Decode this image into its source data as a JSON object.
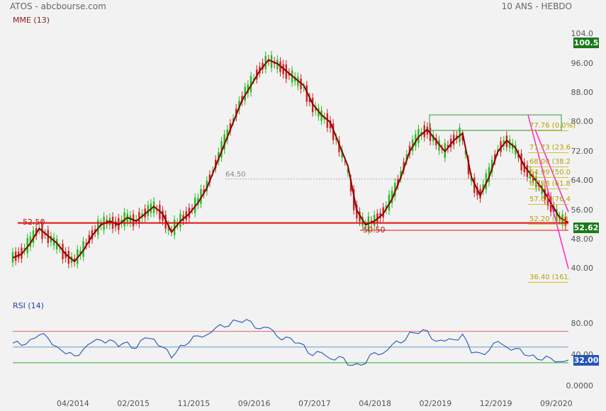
{
  "header": {
    "source_title": "ATOS - abcbourse.com",
    "period": "10 ANS - HEBDO",
    "indicator": "MME (13)",
    "rsi_indicator": "RSI (14)"
  },
  "price_badge": "100.5",
  "current_badge": "52.62",
  "rsi_badge": "32.00",
  "colors": {
    "up_candle": "#22bb22",
    "down_candle": "#cc2222",
    "ema": "#8b0000",
    "support": "#e01010",
    "fibo": "#c8b400",
    "trend": "#ff22cc",
    "rsi": "#2255bb",
    "rsi_upper": "#e06666",
    "rsi_mid": "#6699cc",
    "rsi_lower": "#33aa33",
    "box": "#339933"
  },
  "annotations": {
    "support_left": "52.50",
    "support_right": "50.50",
    "mid_level": "64.50"
  },
  "fibonacci": [
    {
      "label": "77.76  (0.0%)",
      "value": 77.76
    },
    {
      "label": "71.73  (23.6",
      "value": 71.73
    },
    {
      "label": "68.00  (38.2",
      "value": 68.0
    },
    {
      "label": "64.99  (50.0",
      "value": 64.99
    },
    {
      "label": "61.98  (61.8",
      "value": 61.98
    },
    {
      "label": "57.67  (76.4",
      "value": 57.67
    },
    {
      "label": "52.20  (100",
      "value": 52.2
    },
    {
      "label": "36.40  (161.",
      "value": 36.4
    }
  ],
  "chart_data": [
    {
      "type": "line",
      "title": "ATOS - abcbourse.com",
      "subtitle": "10 ANS - HEBDO",
      "series": [
        {
          "name": "MME (13)",
          "values": [
            43,
            44,
            47,
            51,
            49,
            47,
            44,
            42,
            45,
            49,
            52,
            53,
            52,
            54,
            53,
            55,
            57,
            55,
            50,
            53,
            55,
            58,
            62,
            68,
            74,
            80,
            86,
            90,
            94,
            97,
            96,
            94,
            92,
            90,
            85,
            82,
            80,
            74,
            68,
            56,
            52,
            53,
            55,
            59,
            65,
            72,
            76,
            78,
            75,
            72,
            75,
            77,
            65,
            60,
            65,
            72,
            75,
            73,
            68,
            65,
            62,
            58,
            54,
            52.62
          ]
        }
      ],
      "x_tick_labels": [
        "04/2014",
        "02/2015",
        "11/2015",
        "09/2016",
        "07/2017",
        "04/2018",
        "02/2019",
        "12/2019",
        "09/2020"
      ],
      "y_tick_labels": [
        "104.0",
        "96.00",
        "88.00",
        "80.00",
        "72.00",
        "64.00",
        "56.00",
        "48.00",
        "40.00"
      ],
      "ylim": [
        36,
        106
      ],
      "levels": [
        52.5,
        50.5,
        64.5
      ]
    },
    {
      "type": "line",
      "title": "RSI (14)",
      "series": [
        {
          "name": "RSI (14)",
          "values": [
            55,
            52,
            60,
            65,
            62,
            50,
            42,
            38,
            48,
            55,
            60,
            58,
            52,
            55,
            50,
            60,
            62,
            48,
            38,
            50,
            58,
            62,
            68,
            72,
            78,
            82,
            84,
            80,
            76,
            72,
            66,
            60,
            58,
            50,
            42,
            40,
            38,
            35,
            30,
            26,
            32,
            40,
            45,
            50,
            58,
            66,
            70,
            68,
            60,
            55,
            62,
            64,
            45,
            40,
            48,
            55,
            52,
            46,
            42,
            38,
            35,
            34,
            33,
            32
          ]
        }
      ],
      "y_tick_labels": [
        "80.00",
        "40.00",
        "0.0000"
      ],
      "ylim": [
        0,
        95
      ],
      "levels": [
        70,
        50,
        30
      ]
    }
  ]
}
